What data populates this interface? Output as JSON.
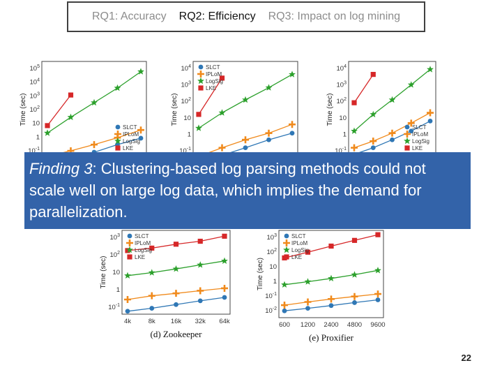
{
  "tabs": [
    {
      "label": "RQ1: Accuracy",
      "active": false
    },
    {
      "label": "RQ2: Efficiency",
      "active": true
    },
    {
      "label": "RQ3: Impact on log mining",
      "active": false
    }
  ],
  "finding": {
    "prefix": "Finding 3",
    "text": ": Clustering-based log parsing methods could not scale well on large log data, which implies the demand for parallelization."
  },
  "page_number": "22",
  "colors": {
    "SLCT": "#2f77b5",
    "IPLoM": "#f08a1c",
    "LogSig": "#2ca02c",
    "LKE": "#d62728"
  },
  "chart_data": [
    {
      "type": "line",
      "scale": "log",
      "ylabel": "Time (sec)",
      "caption": "",
      "ytick_labels": [
        "10^5",
        "10^4",
        "10^3",
        "10^2",
        "10",
        "1",
        "10^-1"
      ],
      "ylim": [
        0.05,
        200000
      ],
      "x_count": 5,
      "x_ticks": [],
      "legend_position": "bottom-right",
      "series": [
        {
          "name": "SLCT",
          "values": [
            0.02,
            0.05,
            0.12,
            0.4,
            1.1
          ]
        },
        {
          "name": "IPLoM",
          "values": [
            0.06,
            0.15,
            0.4,
            1.2,
            4
          ]
        },
        {
          "name": "LogSig",
          "values": [
            2.5,
            30,
            300,
            3000,
            40000
          ]
        },
        {
          "name": "LKE",
          "values": [
            8,
            1000,
            0,
            0,
            0
          ]
        }
      ]
    },
    {
      "type": "line",
      "scale": "log",
      "ylabel": "Time (sec)",
      "caption": "",
      "ytick_labels": [
        "10^4",
        "10^3",
        "10^2",
        "10",
        "1",
        "10^-1"
      ],
      "ylim": [
        0.05,
        30000
      ],
      "x_count": 5,
      "x_ticks": [],
      "legend_position": "top-left",
      "series": [
        {
          "name": "SLCT",
          "values": [
            0.02,
            0.07,
            0.2,
            0.6,
            1.5
          ]
        },
        {
          "name": "IPLoM",
          "values": [
            0.06,
            0.2,
            0.6,
            1.5,
            5
          ]
        },
        {
          "name": "LogSig",
          "values": [
            3,
            25,
            150,
            800,
            5000
          ]
        },
        {
          "name": "LKE",
          "values": [
            20,
            3000,
            0,
            0,
            0
          ]
        }
      ]
    },
    {
      "type": "line",
      "scale": "log",
      "ylabel": "Time (sec)",
      "caption": "",
      "ytick_labels": [
        "10^4",
        "10^3",
        "10^2",
        "10",
        "1",
        "10^-1"
      ],
      "ylim": [
        0.05,
        30000
      ],
      "x_count": 5,
      "x_ticks": [],
      "legend_position": "bottom-right",
      "series": [
        {
          "name": "SLCT",
          "values": [
            0.08,
            0.2,
            0.6,
            2,
            8
          ]
        },
        {
          "name": "IPLoM",
          "values": [
            0.2,
            0.5,
            1.5,
            6,
            25
          ]
        },
        {
          "name": "LogSig",
          "values": [
            2,
            20,
            150,
            1200,
            10000
          ]
        },
        {
          "name": "LKE",
          "values": [
            100,
            5000,
            0,
            0,
            0
          ]
        }
      ]
    },
    {
      "type": "line",
      "scale": "log",
      "ylabel": "Time (sec)",
      "caption": "(d) Zookeeper",
      "ytick_labels": [
        "10^3",
        "10^2",
        "10",
        "1",
        "10^-1"
      ],
      "ylim": [
        0.04,
        4000
      ],
      "x_count": 5,
      "x_ticks": [
        "4k",
        "8k",
        "16k",
        "32k",
        "64k"
      ],
      "legend_position": "top-left",
      "series": [
        {
          "name": "SLCT",
          "values": [
            0.06,
            0.09,
            0.15,
            0.25,
            0.4
          ]
        },
        {
          "name": "IPLoM",
          "values": [
            0.3,
            0.5,
            0.7,
            1.0,
            1.4
          ]
        },
        {
          "name": "LogSig",
          "values": [
            8,
            12,
            20,
            35,
            60
          ]
        },
        {
          "name": "LKE",
          "values": [
            250,
            350,
            600,
            900,
            1800
          ]
        }
      ]
    },
    {
      "type": "line",
      "scale": "log",
      "ylabel": "Time (sec)",
      "caption": "(e) Proxifier",
      "ytick_labels": [
        "10^3",
        "10^2",
        "10",
        "1",
        "10^-1",
        "10^-2"
      ],
      "ylim": [
        0.004,
        5000
      ],
      "x_count": 5,
      "x_ticks": [
        "600",
        "1200",
        "2400",
        "4800",
        "9600"
      ],
      "legend_position": "top-left",
      "series": [
        {
          "name": "SLCT",
          "values": [
            0.012,
            0.018,
            0.028,
            0.045,
            0.07
          ]
        },
        {
          "name": "IPLoM",
          "values": [
            0.03,
            0.05,
            0.08,
            0.12,
            0.18
          ]
        },
        {
          "name": "LogSig",
          "values": [
            0.8,
            1.3,
            2.2,
            4,
            8
          ]
        },
        {
          "name": "LKE",
          "values": [
            60,
            150,
            400,
            1000,
            2500
          ]
        }
      ]
    }
  ]
}
